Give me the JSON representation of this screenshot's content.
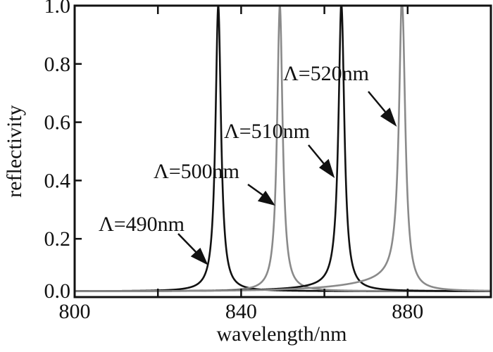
{
  "chart_data": {
    "type": "line",
    "title": "",
    "xlabel": "wavelength/nm",
    "ylabel": "reflectivity",
    "xlim": [
      800,
      900
    ],
    "ylim": [
      0,
      1.0
    ],
    "xticks": [
      800,
      840,
      880
    ],
    "xticks_minor": [
      820,
      860,
      900
    ],
    "xtick_labels": [
      "800",
      "840",
      "880"
    ],
    "yticks": [
      0.0,
      0.2,
      0.4,
      0.6,
      0.8,
      1.0
    ],
    "ytick_labels": [
      "0.0",
      "0.2",
      "0.4",
      "0.6",
      "0.8",
      "1.0"
    ],
    "grid": false,
    "legend": "none",
    "series": [
      {
        "name": "Λ=490nm",
        "label": "Λ=490nm",
        "peak_wavelength": 834.5,
        "peak_value": 1.0,
        "hwhm": 0.8,
        "baseline": 0.02,
        "left_tail": 0.0,
        "color": "#111111"
      },
      {
        "name": "Λ=500nm",
        "label": "Λ=500nm",
        "peak_wavelength": 849.3,
        "peak_value": 1.0,
        "hwhm": 0.8,
        "baseline": 0.02,
        "left_tail": 0.0,
        "color": "#8a8a8a"
      },
      {
        "name": "Λ=510nm",
        "label": "Λ=510nm",
        "peak_wavelength": 864.1,
        "peak_value": 1.0,
        "hwhm": 0.85,
        "baseline": 0.02,
        "left_tail": 0.02,
        "color": "#111111"
      },
      {
        "name": "Λ=520nm",
        "label": "Λ=520nm",
        "peak_wavelength": 878.7,
        "peak_value": 1.0,
        "hwhm": 0.9,
        "baseline": 0.02,
        "left_tail": 0.06,
        "color": "#8a8a8a"
      }
    ]
  }
}
